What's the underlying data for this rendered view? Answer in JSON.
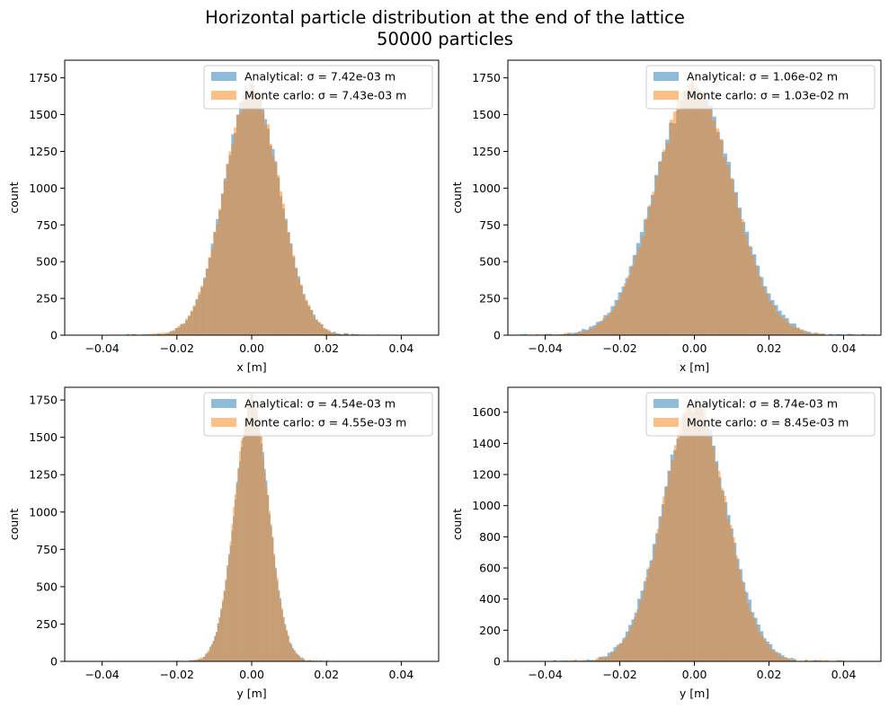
{
  "figure": {
    "title_line1": "Horizontal particle distribution at the end of the lattice",
    "title_line2": "50000 particles"
  },
  "colors": {
    "analytical": "#1f77b4",
    "monte_carlo": "#ff7f0e",
    "analytical_alpha": 0.5,
    "monte_carlo_alpha": 0.5
  },
  "chart_data": [
    {
      "type": "bar",
      "subtype": "histogram",
      "xlabel": "x [m]",
      "ylabel": "count",
      "xlim": [
        -0.05,
        0.05
      ],
      "ylim": [
        0,
        1870
      ],
      "xticks": [
        -0.04,
        -0.02,
        0.0,
        0.02,
        0.04
      ],
      "xtick_labels": [
        "−0.04",
        "−0.02",
        "0.00",
        "0.02",
        "0.04"
      ],
      "yticks": [
        0,
        250,
        500,
        750,
        1000,
        1250,
        1500,
        1750
      ],
      "ytick_labels": [
        "0",
        "250",
        "500",
        "750",
        "1000",
        "1250",
        "1500",
        "1750"
      ],
      "legend": "top-right",
      "bins": 100,
      "series": [
        {
          "name": "Analytical: σ = 7.42e-03 m",
          "color": "#1f77b4",
          "sigma": 0.00742,
          "peak": 1690
        },
        {
          "name": "Monte carlo: σ = 7.43e-03 m",
          "color": "#ff7f0e",
          "sigma": 0.00743,
          "peak": 1680
        }
      ]
    },
    {
      "type": "bar",
      "subtype": "histogram",
      "xlabel": "x [m]",
      "ylabel": "count",
      "xlim": [
        -0.05,
        0.05
      ],
      "ylim": [
        0,
        1870
      ],
      "xticks": [
        -0.04,
        -0.02,
        0.0,
        0.02,
        0.04
      ],
      "xtick_labels": [
        "−0.04",
        "−0.02",
        "0.00",
        "0.02",
        "0.04"
      ],
      "yticks": [
        0,
        250,
        500,
        750,
        1000,
        1250,
        1500,
        1750
      ],
      "ytick_labels": [
        "0",
        "250",
        "500",
        "750",
        "1000",
        "1250",
        "1500",
        "1750"
      ],
      "legend": "top-right",
      "bins": 100,
      "series": [
        {
          "name": "Analytical: σ = 1.06e-02 m",
          "color": "#1f77b4",
          "sigma": 0.0106,
          "peak": 1690
        },
        {
          "name": "Monte carlo: σ = 1.03e-02 m",
          "color": "#ff7f0e",
          "sigma": 0.0103,
          "peak": 1700
        }
      ]
    },
    {
      "type": "bar",
      "subtype": "histogram",
      "xlabel": "y [m]",
      "ylabel": "count",
      "xlim": [
        -0.05,
        0.05
      ],
      "ylim": [
        0,
        1835
      ],
      "xticks": [
        -0.04,
        -0.02,
        0.0,
        0.02,
        0.04
      ],
      "xtick_labels": [
        "−0.04",
        "−0.02",
        "0.00",
        "0.02",
        "0.04"
      ],
      "yticks": [
        0,
        250,
        500,
        750,
        1000,
        1250,
        1500,
        1750
      ],
      "ytick_labels": [
        "0",
        "250",
        "500",
        "750",
        "1000",
        "1250",
        "1500",
        "1750"
      ],
      "legend": "top-right",
      "bins": 100,
      "series": [
        {
          "name": "Analytical: σ = 4.54e-03 m",
          "color": "#1f77b4",
          "sigma": 0.00454,
          "peak": 1740
        },
        {
          "name": "Monte carlo: σ = 4.55e-03 m",
          "color": "#ff7f0e",
          "sigma": 0.00455,
          "peak": 1745
        }
      ]
    },
    {
      "type": "bar",
      "subtype": "histogram",
      "xlabel": "y [m]",
      "ylabel": "count",
      "xlim": [
        -0.05,
        0.05
      ],
      "ylim": [
        0,
        1760
      ],
      "xticks": [
        -0.04,
        -0.02,
        0.0,
        0.02,
        0.04
      ],
      "xtick_labels": [
        "−0.04",
        "−0.02",
        "0.00",
        "0.02",
        "0.04"
      ],
      "yticks": [
        0,
        200,
        400,
        600,
        800,
        1000,
        1200,
        1400,
        1600
      ],
      "ytick_labels": [
        "0",
        "200",
        "400",
        "600",
        "800",
        "1000",
        "1200",
        "1400",
        "1600"
      ],
      "legend": "top-right",
      "bins": 100,
      "series": [
        {
          "name": "Analytical: σ = 8.74e-03 m",
          "color": "#1f77b4",
          "sigma": 0.00874,
          "peak": 1640
        },
        {
          "name": "Monte carlo: σ = 8.45e-03 m",
          "color": "#ff7f0e",
          "sigma": 0.00845,
          "peak": 1660
        }
      ]
    }
  ]
}
